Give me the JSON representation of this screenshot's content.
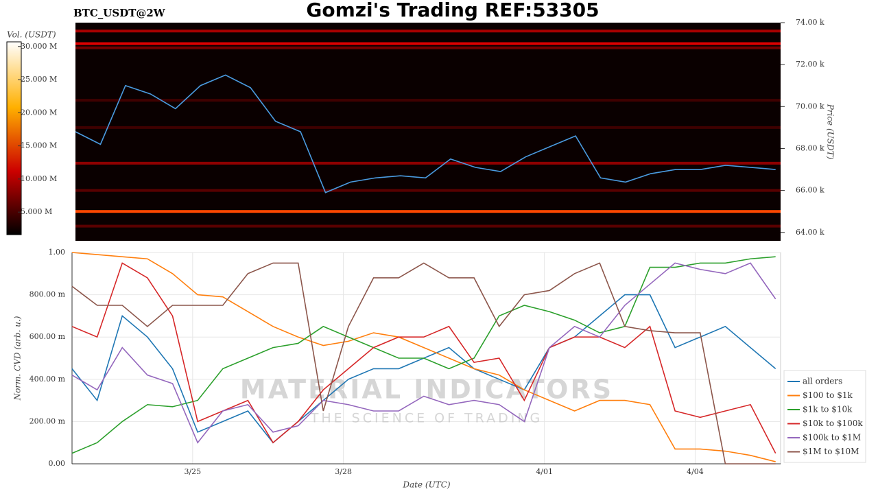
{
  "chart_data": [
    {
      "type": "heatmap",
      "title": "Gomzi's Trading REF:53305",
      "subtitle": "BTC_USDT@2W",
      "y_label": "Price (USDT)",
      "colorbar_label": "Vol. (USDT)",
      "x": [
        0,
        0.5,
        1,
        1.5,
        2,
        2.5,
        3,
        3.5,
        4,
        4.5,
        5,
        5.5,
        6,
        6.5,
        7,
        7.5,
        8,
        8.5,
        9,
        9.5,
        10,
        10.5,
        11,
        11.5,
        12,
        12.5,
        13,
        13.5,
        14
      ],
      "xlim": [
        0,
        14.1
      ],
      "ylim": [
        63600,
        74000
      ],
      "yticks": [
        {
          "value": 64000,
          "label": "64.00 k"
        },
        {
          "value": 66000,
          "label": "66.00 k"
        },
        {
          "value": 68000,
          "label": "68.00 k"
        },
        {
          "value": 70000,
          "label": "70.00 k"
        },
        {
          "value": 72000,
          "label": "72.00 k"
        },
        {
          "value": 74000,
          "label": "74.00 k"
        }
      ],
      "clim": [
        1600000,
        30700000
      ],
      "cticks": [
        {
          "value": 5000000,
          "label": "5.000 M"
        },
        {
          "value": 10000000,
          "label": "10.000 M"
        },
        {
          "value": 15000000,
          "label": "15.000 M"
        },
        {
          "value": 20000000,
          "label": "20.000 M"
        },
        {
          "value": 25000000,
          "label": "25.000 M"
        },
        {
          "value": 30000000,
          "label": "30.000 M"
        }
      ],
      "levels": [
        73600,
        73000,
        72800,
        70300,
        69000,
        67300,
        66000,
        65000,
        64300
      ],
      "level_volumes": [
        8000000,
        10000000,
        6000000,
        4000000,
        4000000,
        7000000,
        5000000,
        14000000,
        5000000
      ],
      "line": {
        "color": "#4a9be0",
        "values": [
          68.8,
          68.2,
          71.0,
          70.6,
          69.9,
          71.0,
          71.5,
          70.9,
          69.3,
          68.8,
          65.9,
          66.4,
          66.6,
          66.7,
          66.6,
          67.5,
          67.1,
          66.9,
          67.6,
          68.1,
          68.6,
          66.6,
          66.4,
          66.8,
          67.0,
          67.0,
          67.2,
          67.1,
          67.0
        ],
        "scale": 1000
      }
    },
    {
      "type": "line",
      "x": [
        0,
        0.5,
        1,
        1.5,
        2,
        2.5,
        3,
        3.5,
        4,
        4.5,
        5,
        5.5,
        6,
        6.5,
        7,
        7.5,
        8,
        8.5,
        9,
        9.5,
        10,
        10.5,
        11,
        11.5,
        12,
        12.5,
        13,
        13.5,
        14
      ],
      "xlim": [
        0,
        14.1
      ],
      "xticks": [
        {
          "value": 2.4,
          "label": "3/25"
        },
        {
          "value": 5.4,
          "label": "3/28"
        },
        {
          "value": 9.4,
          "label": "4/01"
        },
        {
          "value": 12.4,
          "label": "4/04"
        }
      ],
      "ylim": [
        0,
        1
      ],
      "yticks": [
        {
          "value": 0,
          "label": "0.00"
        },
        {
          "value": 0.2,
          "label": "200.00 m"
        },
        {
          "value": 0.4,
          "label": "400.00 m"
        },
        {
          "value": 0.6,
          "label": "600.00 m"
        },
        {
          "value": 0.8,
          "label": "800.00 m"
        },
        {
          "value": 1,
          "label": "1.00"
        }
      ],
      "x_label": "Date (UTC)",
      "y_label": "Norm. CVD (arb. u.)",
      "grid": true,
      "legend": "right",
      "watermark": [
        "MATERIAL INDICATORS",
        "THE SCIENCE OF TRADING"
      ],
      "series": [
        {
          "name": "all orders",
          "color": "#1f77b4",
          "values": [
            0.45,
            0.3,
            0.7,
            0.6,
            0.45,
            0.15,
            0.2,
            0.25,
            0.1,
            0.2,
            0.3,
            0.4,
            0.45,
            0.45,
            0.5,
            0.55,
            0.45,
            0.4,
            0.35,
            0.55,
            0.6,
            0.7,
            0.8,
            0.8,
            0.55,
            0.6,
            0.65,
            0.55,
            0.45
          ]
        },
        {
          "name": "$100 to $1k",
          "color": "#ff7f0e",
          "values": [
            1.0,
            0.99,
            0.98,
            0.97,
            0.9,
            0.8,
            0.79,
            0.72,
            0.65,
            0.6,
            0.56,
            0.58,
            0.62,
            0.6,
            0.55,
            0.5,
            0.45,
            0.42,
            0.35,
            0.3,
            0.25,
            0.3,
            0.3,
            0.28,
            0.07,
            0.07,
            0.06,
            0.04,
            0.01
          ]
        },
        {
          "name": "$1k to $10k",
          "color": "#2ca02c",
          "values": [
            0.05,
            0.1,
            0.2,
            0.28,
            0.27,
            0.3,
            0.45,
            0.5,
            0.55,
            0.57,
            0.65,
            0.6,
            0.55,
            0.5,
            0.5,
            0.45,
            0.5,
            0.7,
            0.75,
            0.72,
            0.68,
            0.62,
            0.65,
            0.93,
            0.93,
            0.95,
            0.95,
            0.97,
            0.98
          ]
        },
        {
          "name": "$10k to $100k",
          "color": "#d62728",
          "values": [
            0.65,
            0.6,
            0.95,
            0.88,
            0.7,
            0.2,
            0.25,
            0.3,
            0.1,
            0.2,
            0.35,
            0.45,
            0.55,
            0.6,
            0.6,
            0.65,
            0.48,
            0.5,
            0.3,
            0.55,
            0.6,
            0.6,
            0.55,
            0.65,
            0.25,
            0.22,
            0.25,
            0.28,
            0.05
          ]
        },
        {
          "name": "$100k to $1M",
          "color": "#9467bd",
          "values": [
            0.42,
            0.35,
            0.55,
            0.42,
            0.38,
            0.1,
            0.25,
            0.28,
            0.15,
            0.18,
            0.3,
            0.28,
            0.25,
            0.25,
            0.32,
            0.28,
            0.3,
            0.28,
            0.2,
            0.55,
            0.65,
            0.6,
            0.75,
            0.85,
            0.95,
            0.92,
            0.9,
            0.95,
            0.78
          ]
        },
        {
          "name": "$1M to $10M",
          "color": "#8c564b",
          "values": [
            0.84,
            0.75,
            0.75,
            0.65,
            0.75,
            0.75,
            0.75,
            0.9,
            0.95,
            0.95,
            0.25,
            0.65,
            0.88,
            0.88,
            0.95,
            0.88,
            0.88,
            0.65,
            0.8,
            0.82,
            0.9,
            0.95,
            0.65,
            0.63,
            0.62,
            0.62,
            0.0,
            0.0,
            0.0
          ]
        }
      ]
    }
  ]
}
